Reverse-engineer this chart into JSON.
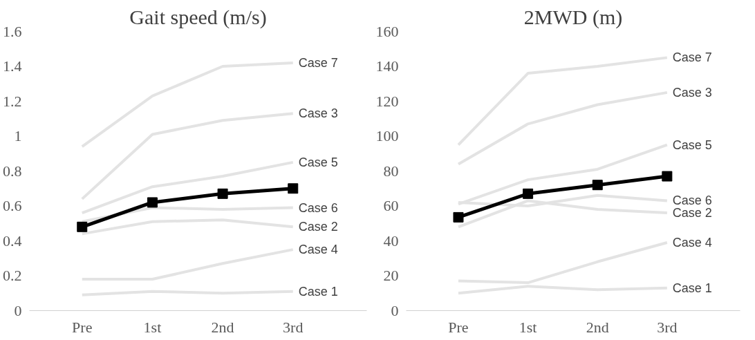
{
  "chart_data": [
    {
      "type": "line",
      "title": "Gait speed (m/s)",
      "categories": [
        "Pre",
        "1st",
        "2nd",
        "3rd"
      ],
      "ylim": [
        0,
        1.6
      ],
      "yticks": [
        0,
        0.2,
        0.4,
        0.6,
        0.8,
        1,
        1.2,
        1.4,
        1.6
      ],
      "grid": false,
      "legend": false,
      "line_style": "solid",
      "series": [
        {
          "name": "Case 7",
          "color": "#e3e3e3",
          "marker": "none",
          "values": [
            0.94,
            1.23,
            1.4,
            1.42
          ]
        },
        {
          "name": "Case 3",
          "color": "#e3e3e3",
          "marker": "none",
          "values": [
            0.64,
            1.01,
            1.09,
            1.13
          ]
        },
        {
          "name": "Case 5",
          "color": "#e3e3e3",
          "marker": "none",
          "values": [
            0.56,
            0.71,
            0.77,
            0.85
          ]
        },
        {
          "name": "Case 6",
          "color": "#e3e3e3",
          "marker": "none",
          "values": [
            0.51,
            0.59,
            0.58,
            0.59
          ]
        },
        {
          "name": "Case 2",
          "color": "#e3e3e3",
          "marker": "none",
          "values": [
            0.44,
            0.51,
            0.52,
            0.48
          ]
        },
        {
          "name": "Case 4",
          "color": "#e3e3e3",
          "marker": "none",
          "values": [
            0.18,
            0.18,
            0.27,
            0.35
          ]
        },
        {
          "name": "Case 1",
          "color": "#e3e3e3",
          "marker": "none",
          "values": [
            0.09,
            0.11,
            0.1,
            0.11
          ]
        },
        {
          "color": "#000000",
          "marker": "square",
          "values": [
            0.48,
            0.62,
            0.67,
            0.7
          ]
        }
      ]
    },
    {
      "type": "line",
      "title": "2MWD (m)",
      "categories": [
        "Pre",
        "1st",
        "2nd",
        "3rd"
      ],
      "ylim": [
        0,
        160
      ],
      "yticks": [
        0,
        20,
        40,
        60,
        80,
        100,
        120,
        140,
        160
      ],
      "grid": false,
      "legend": false,
      "line_style": "solid",
      "series": [
        {
          "name": "Case 7",
          "color": "#e3e3e3",
          "marker": "none",
          "values": [
            95,
            136,
            140,
            145
          ]
        },
        {
          "name": "Case 3",
          "color": "#e3e3e3",
          "marker": "none",
          "values": [
            84,
            107,
            118,
            125
          ]
        },
        {
          "name": "Case 5",
          "color": "#e3e3e3",
          "marker": "none",
          "values": [
            61,
            75,
            81,
            95
          ]
        },
        {
          "name": "Case 6",
          "color": "#e3e3e3",
          "marker": "none",
          "values": [
            62,
            60,
            66,
            63
          ]
        },
        {
          "name": "Case 2",
          "color": "#e3e3e3",
          "marker": "none",
          "values": [
            48,
            63,
            58,
            56
          ]
        },
        {
          "name": "Case 4",
          "color": "#e3e3e3",
          "marker": "none",
          "values": [
            17,
            16,
            28,
            39
          ]
        },
        {
          "name": "Case 1",
          "color": "#e3e3e3",
          "marker": "none",
          "values": [
            10,
            14,
            12,
            13
          ]
        },
        {
          "color": "#000000",
          "marker": "square",
          "values": [
            53.5,
            67,
            72,
            77
          ]
        }
      ]
    }
  ]
}
